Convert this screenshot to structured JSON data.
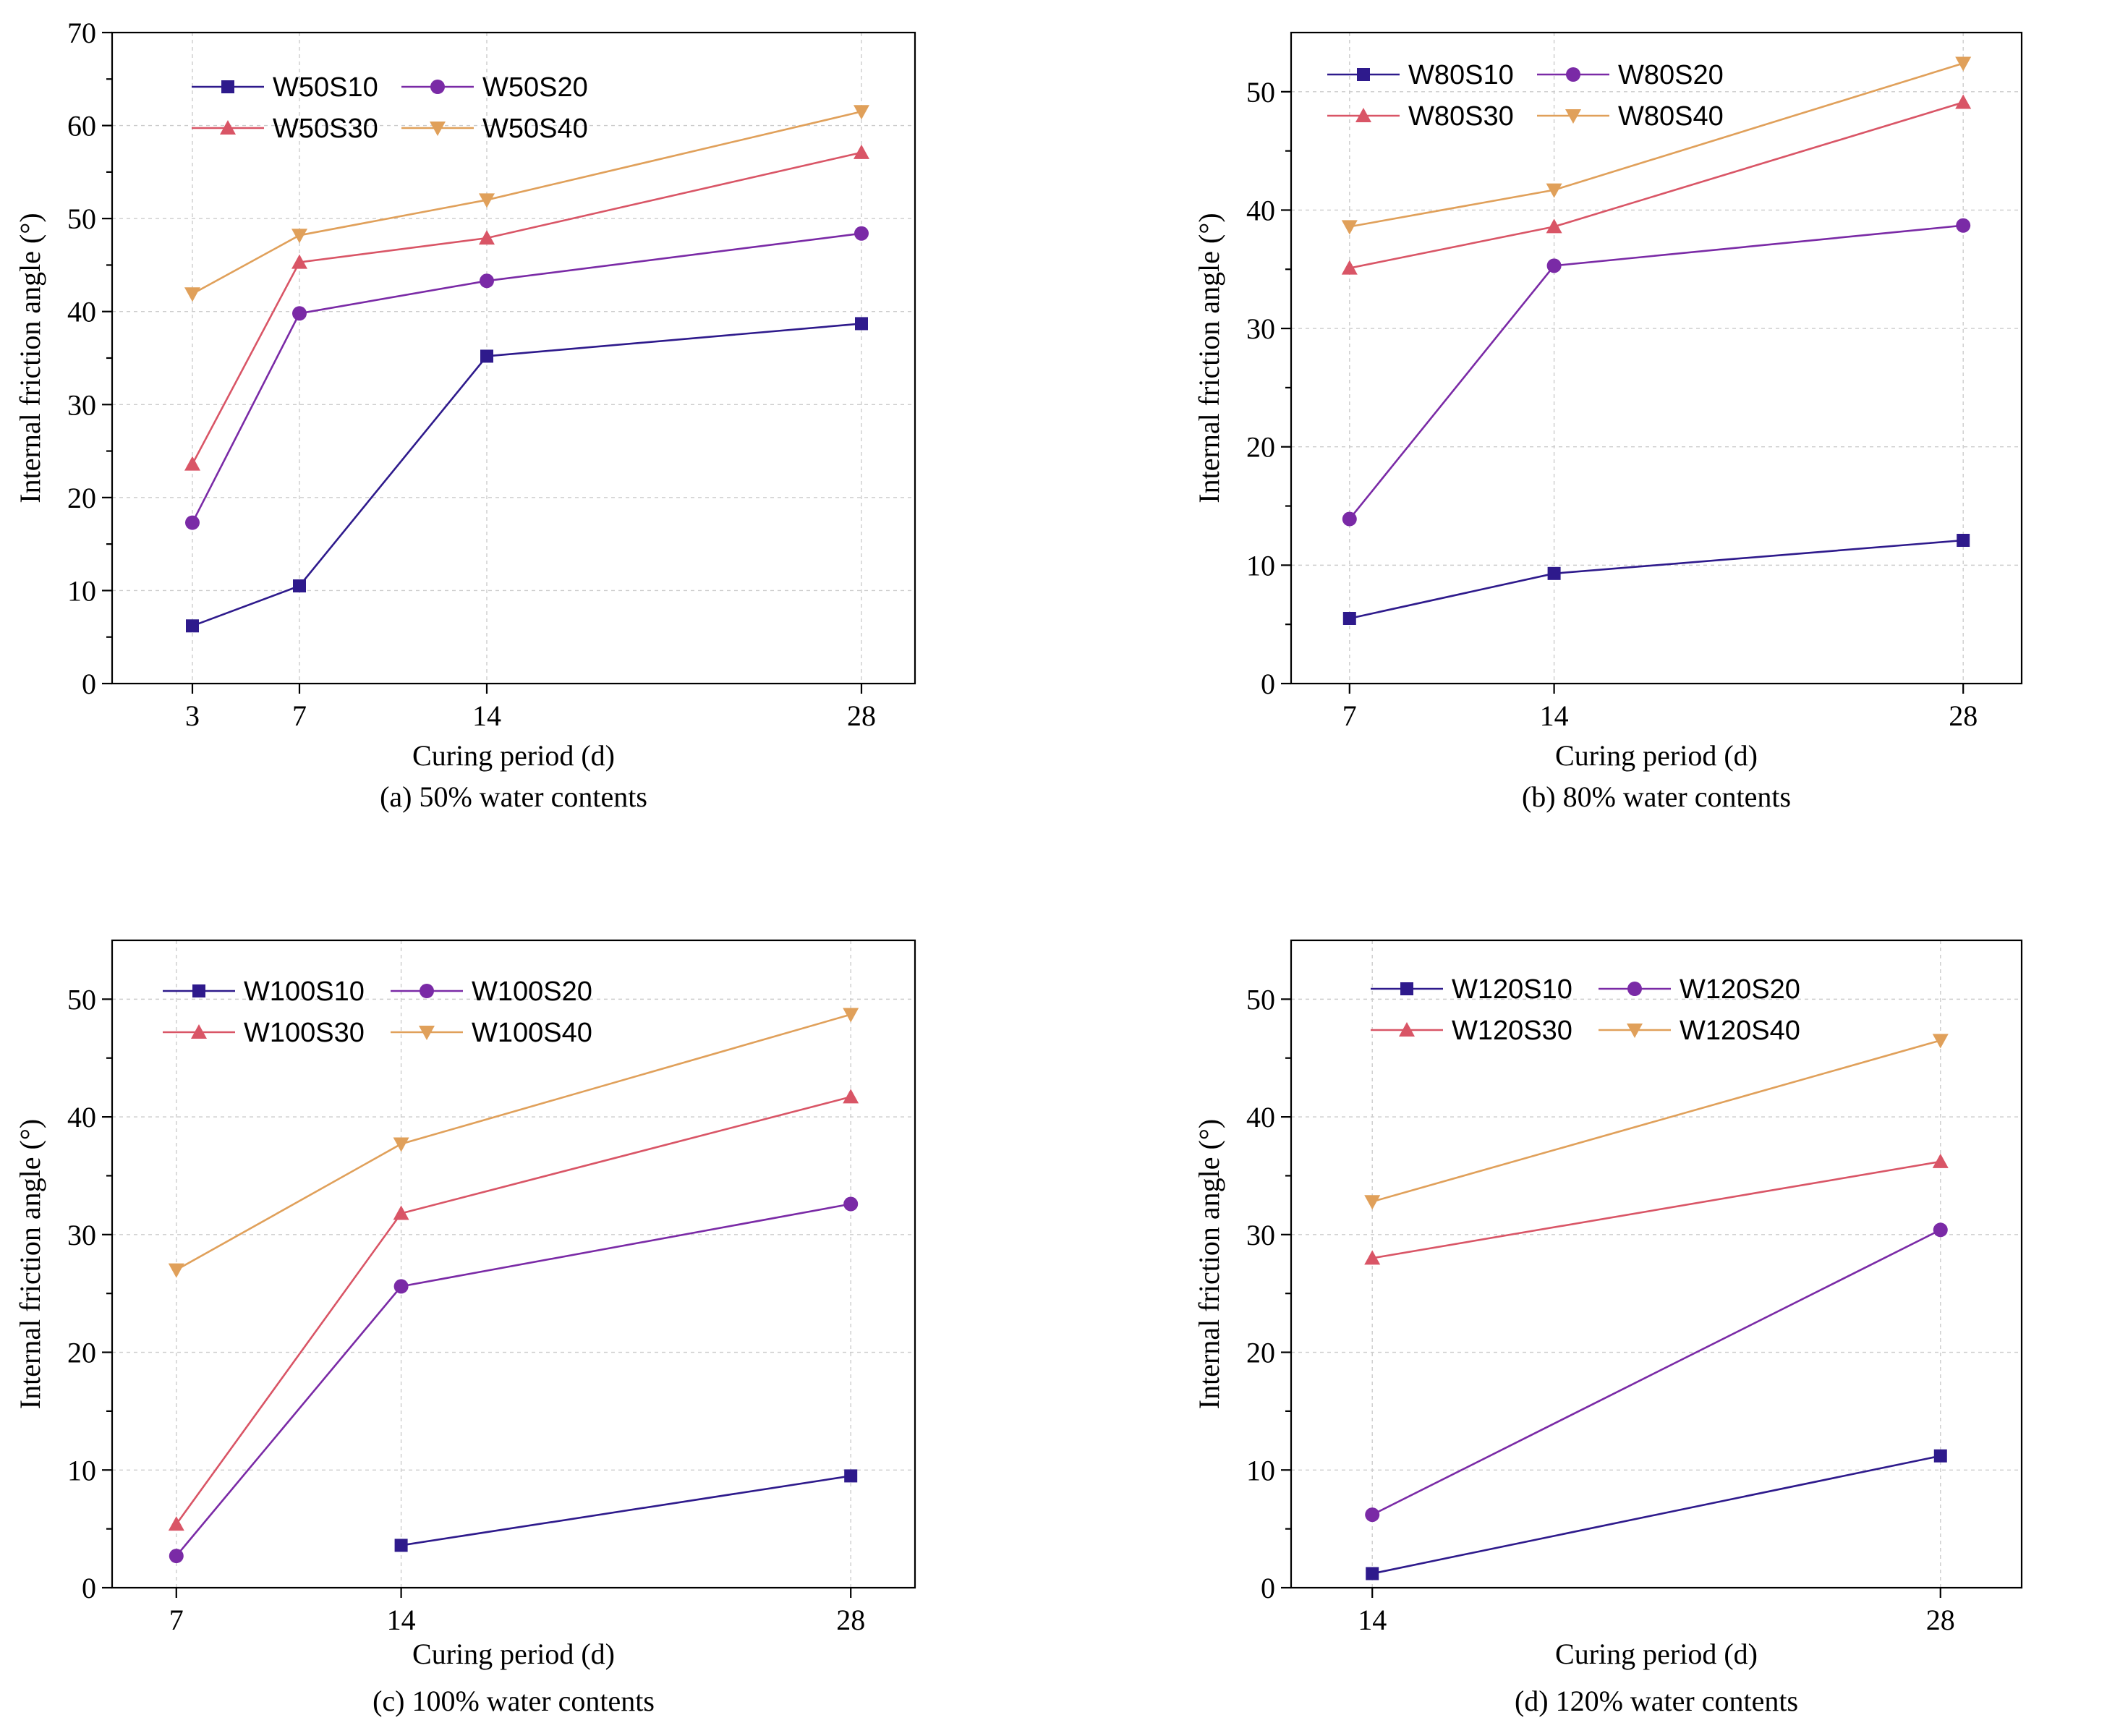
{
  "chart_data": [
    {
      "type": "line",
      "caption": "(a) 50% water contents",
      "xlabel": "Curing period (d)",
      "ylabel": "Internal friction angle (°)",
      "x_ticks": [
        3,
        7,
        14,
        28
      ],
      "xlim": [
        0,
        30
      ],
      "ylim": [
        0,
        70
      ],
      "y_ticks": [
        0,
        10,
        20,
        30,
        40,
        50,
        60,
        70
      ],
      "grid": true,
      "legend_position": "top-left",
      "series": [
        {
          "name": "W50S10",
          "color": "#2e1a8c",
          "marker": "square",
          "x": [
            3,
            7,
            14,
            28
          ],
          "values": [
            6.2,
            10.5,
            35.2,
            38.7
          ]
        },
        {
          "name": "W50S20",
          "color": "#7a2aa6",
          "marker": "circle",
          "x": [
            3,
            7,
            14,
            28
          ],
          "values": [
            17.3,
            39.8,
            43.3,
            48.4
          ]
        },
        {
          "name": "W50S30",
          "color": "#d95566",
          "marker": "triangle-up",
          "x": [
            3,
            7,
            14,
            28
          ],
          "values": [
            23.6,
            45.3,
            47.9,
            57.1
          ]
        },
        {
          "name": "W50S40",
          "color": "#e0a05a",
          "marker": "triangle-down",
          "x": [
            3,
            7,
            14,
            28
          ],
          "values": [
            41.9,
            48.2,
            52.0,
            61.5
          ]
        }
      ]
    },
    {
      "type": "line",
      "caption": "(b) 80% water contents",
      "xlabel": "Curing period (d)",
      "ylabel": "Internal friction angle (°)",
      "x_ticks": [
        7,
        14,
        28
      ],
      "xlim": [
        5,
        30
      ],
      "ylim": [
        0,
        55
      ],
      "y_ticks": [
        0,
        10,
        20,
        30,
        40,
        50
      ],
      "grid": true,
      "legend_position": "top-left",
      "series": [
        {
          "name": "W80S10",
          "color": "#2e1a8c",
          "marker": "square",
          "x": [
            7,
            14,
            28
          ],
          "values": [
            5.5,
            9.3,
            12.1
          ]
        },
        {
          "name": "W80S20",
          "color": "#7a2aa6",
          "marker": "circle",
          "x": [
            7,
            14,
            28
          ],
          "values": [
            13.9,
            35.3,
            38.7
          ]
        },
        {
          "name": "W80S30",
          "color": "#d95566",
          "marker": "triangle-up",
          "x": [
            7,
            14,
            28
          ],
          "values": [
            35.1,
            38.6,
            49.1
          ]
        },
        {
          "name": "W80S40",
          "color": "#e0a05a",
          "marker": "triangle-down",
          "x": [
            7,
            14,
            28
          ],
          "values": [
            38.6,
            41.7,
            52.4
          ]
        }
      ]
    },
    {
      "type": "line",
      "caption": "(c) 100% water contents",
      "xlabel": "Curing period (d)",
      "ylabel": "Internal friction angle (°)",
      "x_ticks": [
        7,
        14,
        28
      ],
      "xlim": [
        5,
        30
      ],
      "ylim": [
        0,
        55
      ],
      "y_ticks": [
        0,
        10,
        20,
        30,
        40,
        50
      ],
      "grid": true,
      "legend_position": "top-left",
      "series": [
        {
          "name": "W100S10",
          "color": "#2e1a8c",
          "marker": "square",
          "x": [
            14,
            28
          ],
          "values": [
            3.6,
            9.5
          ]
        },
        {
          "name": "W100S20",
          "color": "#7a2aa6",
          "marker": "circle",
          "x": [
            7,
            14,
            28
          ],
          "values": [
            2.7,
            25.6,
            32.6
          ]
        },
        {
          "name": "W100S30",
          "color": "#d95566",
          "marker": "triangle-up",
          "x": [
            7,
            14,
            28
          ],
          "values": [
            5.4,
            31.8,
            41.7
          ]
        },
        {
          "name": "W100S40",
          "color": "#e0a05a",
          "marker": "triangle-down",
          "x": [
            7,
            14,
            28
          ],
          "values": [
            27.0,
            37.7,
            48.7
          ]
        }
      ]
    },
    {
      "type": "line",
      "caption": "(d) 120% water contents",
      "xlabel": "Curing period (d)",
      "ylabel": "Internal friction angle (°)",
      "x_ticks": [
        14,
        28
      ],
      "xlim": [
        12,
        30
      ],
      "ylim": [
        0,
        55
      ],
      "y_ticks": [
        0,
        10,
        20,
        30,
        40,
        50
      ],
      "grid": true,
      "legend_position": "top-left",
      "series": [
        {
          "name": "W120S10",
          "color": "#2e1a8c",
          "marker": "square",
          "x": [
            14,
            28
          ],
          "values": [
            1.2,
            11.2
          ]
        },
        {
          "name": "W120S20",
          "color": "#7a2aa6",
          "marker": "circle",
          "x": [
            14,
            28
          ],
          "values": [
            6.2,
            30.4
          ]
        },
        {
          "name": "W120S30",
          "color": "#d95566",
          "marker": "triangle-up",
          "x": [
            14,
            28
          ],
          "values": [
            28.0,
            36.2
          ]
        },
        {
          "name": "W120S40",
          "color": "#e0a05a",
          "marker": "triangle-down",
          "x": [
            14,
            28
          ],
          "values": [
            32.8,
            46.5
          ]
        }
      ]
    }
  ]
}
